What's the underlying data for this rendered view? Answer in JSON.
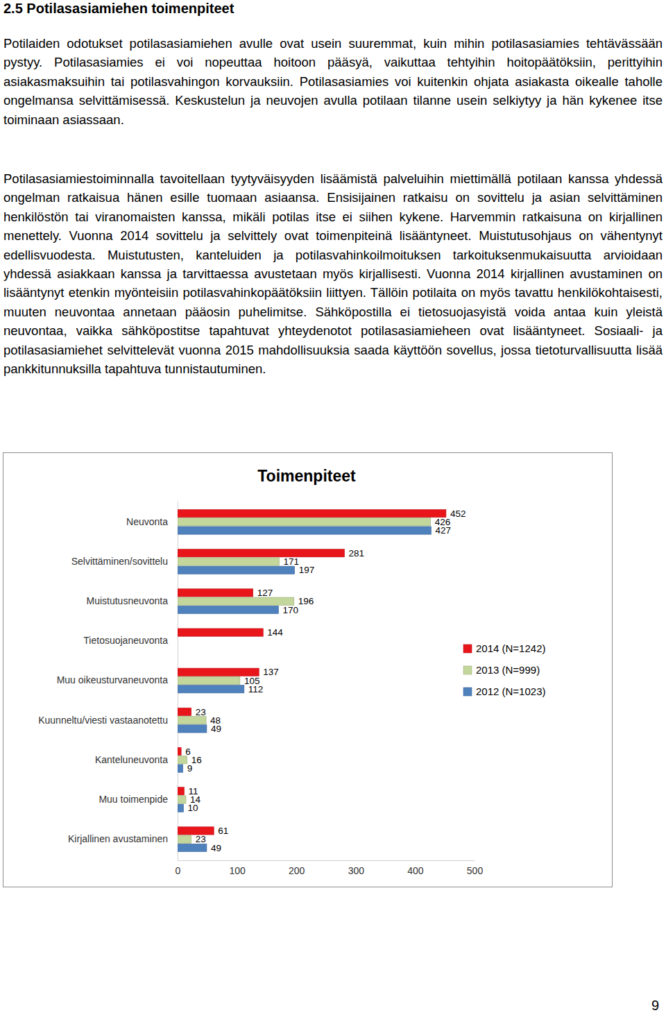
{
  "heading": "2.5 Potilasasiamiehen toimenpiteet",
  "paragraphs": [
    "Potilaiden odotukset potilasasiamiehen avulle ovat usein suuremmat, kuin mihin potilasasiamies tehtävässään pystyy. Potilasasiamies ei voi nopeuttaa hoitoon pääsyä, vaikuttaa tehtyihin hoitopäätöksiin, perittyihin asiakasmaksuihin tai potilasvahingon korvauksiin. Potilasasiamies voi kuitenkin ohjata asiakasta oikealle taholle ongelmansa selvittämisessä. Keskustelun ja neuvojen avulla potilaan tilanne usein selkiytyy ja hän kykenee itse toiminaan asiassaan.",
    "Potilasasiamiestoiminnalla tavoitellaan tyytyväisyyden lisäämistä palveluihin miettimällä potilaan kanssa yhdessä ongelman ratkaisua hänen esille tuomaan asiaansa. Ensisijainen ratkaisu on sovittelu ja asian selvittäminen henkilöstön tai viranomaisten kanssa, mikäli potilas itse ei siihen kykene. Harvemmin ratkaisuna on kirjallinen menettely. Vuonna 2014 sovittelu ja selvittely ovat toimenpiteinä lisääntyneet. Muistutusohjaus on vähentynyt edellisvuodesta. Muistutusten, kanteluiden ja potilasvahinkoilmoituksen tarkoituksenmukaisuutta arvioidaan yhdessä asiakkaan kanssa ja tarvittaessa avustetaan myös kirjallisesti. Vuonna 2014 kirjallinen avustaminen on lisääntynyt etenkin myönteisiin potilasvahinkopäätöksiin liittyen. Tällöin potilaita on myös tavattu henkilökohtaisesti, muuten neuvontaa annetaan pääosin puhelimitse. Sähköpostilla ei tietosuojasyistä voida antaa kuin yleistä neuvontaa, vaikka sähköpostitse tapahtuvat yhteydenotot potilasasiamieheen ovat lisääntyneet. Sosiaali- ja potilasasiamiehet selvittelevät vuonna 2015 mahdollisuuksia saada käyttöön sovellus, jossa tietoturvallisuutta lisää pankkitunnuksilla tapahtuva tunnistautuminen."
  ],
  "chart_data": {
    "type": "bar",
    "orientation": "horizontal",
    "title": "Toimenpiteet",
    "categories": [
      "Neuvonta",
      "Selvittäminen/sovittelu",
      "Muistutusneuvonta",
      "Tietosuojaneuvonta",
      "Muu oikeusturvaneuvonta",
      "Kuunneltu/viesti vastaanotettu",
      "Kanteluneuvonta",
      "Muu toimenpide",
      "Kirjallinen avustaminen"
    ],
    "series": [
      {
        "name": "2014 (N=1242)",
        "color": "#e8151b",
        "values": [
          452,
          281,
          127,
          144,
          137,
          23,
          6,
          11,
          61
        ]
      },
      {
        "name": "2013 (N=999)",
        "color": "#c3d69b",
        "values": [
          426,
          171,
          196,
          null,
          105,
          48,
          16,
          14,
          23
        ]
      },
      {
        "name": "2012 (N=1023)",
        "color": "#4f81bd",
        "values": [
          427,
          197,
          170,
          null,
          112,
          49,
          9,
          10,
          49
        ]
      }
    ],
    "xlim": [
      0,
      500
    ],
    "xticks": [
      0,
      100,
      200,
      300,
      400,
      500
    ],
    "grid": false,
    "legend": "right",
    "data_labels": true
  },
  "page_number": 9
}
